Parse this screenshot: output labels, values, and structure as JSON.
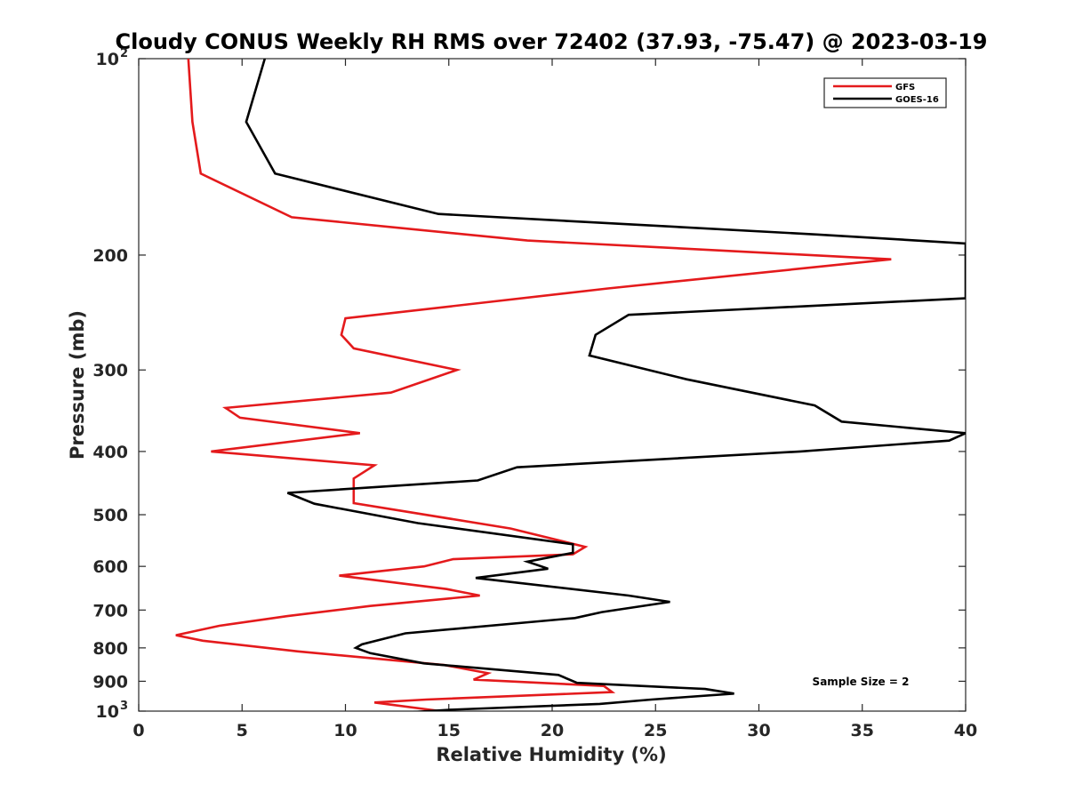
{
  "chart_data": {
    "type": "line",
    "title": "Cloudy CONUS Weekly RH RMS over 72402 (37.93, -75.47) @ 2023-03-19",
    "xlabel": "Relative Humidity (%)",
    "ylabel": "Pressure (mb)",
    "xlim": [
      0,
      40
    ],
    "ylim": [
      100,
      1000
    ],
    "y_scale": "log",
    "y_reversed": false,
    "x_ticks": [
      "0",
      "5",
      "10",
      "15",
      "20",
      "25",
      "30",
      "35",
      "40"
    ],
    "y_ticks": [
      {
        "value": 100,
        "label": "10",
        "sup": "2"
      },
      {
        "value": 200,
        "label": "200",
        "sup": ""
      },
      {
        "value": 300,
        "label": "300",
        "sup": ""
      },
      {
        "value": 400,
        "label": "400",
        "sup": ""
      },
      {
        "value": 500,
        "label": "500",
        "sup": ""
      },
      {
        "value": 600,
        "label": "600",
        "sup": ""
      },
      {
        "value": 700,
        "label": "700",
        "sup": ""
      },
      {
        "value": 800,
        "label": "800",
        "sup": ""
      },
      {
        "value": 900,
        "label": "900",
        "sup": ""
      },
      {
        "value": 1000,
        "label": "10",
        "sup": "3"
      }
    ],
    "legend_position": "top-right",
    "annotation": "Sample Size = 2",
    "series": [
      {
        "name": "GFS",
        "color": "#e41a1c",
        "points": [
          [
            2.4,
            100
          ],
          [
            2.6,
            125
          ],
          [
            3.0,
            150
          ],
          [
            7.4,
            175
          ],
          [
            18.8,
            190
          ],
          [
            36.4,
            203
          ],
          [
            22.7,
            225
          ],
          [
            10.0,
            250
          ],
          [
            9.8,
            265
          ],
          [
            10.4,
            278
          ],
          [
            15.4,
            300
          ],
          [
            12.2,
            325
          ],
          [
            4.2,
            343
          ],
          [
            4.9,
            355
          ],
          [
            10.7,
            375
          ],
          [
            3.5,
            400
          ],
          [
            11.4,
            420
          ],
          [
            10.4,
            440
          ],
          [
            10.4,
            480
          ],
          [
            18.0,
            525
          ],
          [
            21.6,
            560
          ],
          [
            21.0,
            575
          ],
          [
            15.2,
            585
          ],
          [
            13.8,
            600
          ],
          [
            9.7,
            620
          ],
          [
            14.9,
            650
          ],
          [
            16.5,
            665
          ],
          [
            11.2,
            690
          ],
          [
            7.2,
            715
          ],
          [
            3.9,
            740
          ],
          [
            1.8,
            765
          ],
          [
            3.1,
            780
          ],
          [
            7.7,
            810
          ],
          [
            14.8,
            850
          ],
          [
            16.9,
            875
          ],
          [
            16.2,
            895
          ],
          [
            22.5,
            915
          ],
          [
            22.9,
            935
          ],
          [
            13.9,
            960
          ],
          [
            11.4,
            970
          ],
          [
            14.6,
            1000
          ]
        ]
      },
      {
        "name": "GOES-16",
        "color": "#000000",
        "points": [
          [
            6.1,
            100
          ],
          [
            5.2,
            125
          ],
          [
            6.6,
            150
          ],
          [
            14.5,
            173
          ],
          [
            32.8,
            186
          ],
          [
            40.0,
            192
          ],
          [
            40.0,
            233
          ],
          [
            23.7,
            247
          ],
          [
            22.1,
            265
          ],
          [
            21.8,
            285
          ],
          [
            26.5,
            310
          ],
          [
            32.7,
            340
          ],
          [
            34.0,
            360
          ],
          [
            40.0,
            375
          ],
          [
            40.0,
            375
          ],
          [
            39.2,
            385
          ],
          [
            32.0,
            400
          ],
          [
            18.3,
            423
          ],
          [
            16.4,
            443
          ],
          [
            7.2,
            463
          ],
          [
            8.5,
            481
          ],
          [
            13.5,
            515
          ],
          [
            21.0,
            555
          ],
          [
            21.0,
            572
          ],
          [
            18.8,
            590
          ],
          [
            19.8,
            605
          ],
          [
            16.3,
            625
          ],
          [
            23.7,
            665
          ],
          [
            25.7,
            680
          ],
          [
            22.4,
            705
          ],
          [
            21.1,
            720
          ],
          [
            12.9,
            760
          ],
          [
            10.8,
            790
          ],
          [
            10.5,
            800
          ],
          [
            11.2,
            815
          ],
          [
            13.8,
            845
          ],
          [
            20.3,
            880
          ],
          [
            21.2,
            905
          ],
          [
            27.4,
            925
          ],
          [
            28.8,
            940
          ],
          [
            24.8,
            960
          ],
          [
            22.3,
            975
          ],
          [
            15.1,
            995
          ],
          [
            13.3,
            1003
          ]
        ]
      }
    ]
  }
}
